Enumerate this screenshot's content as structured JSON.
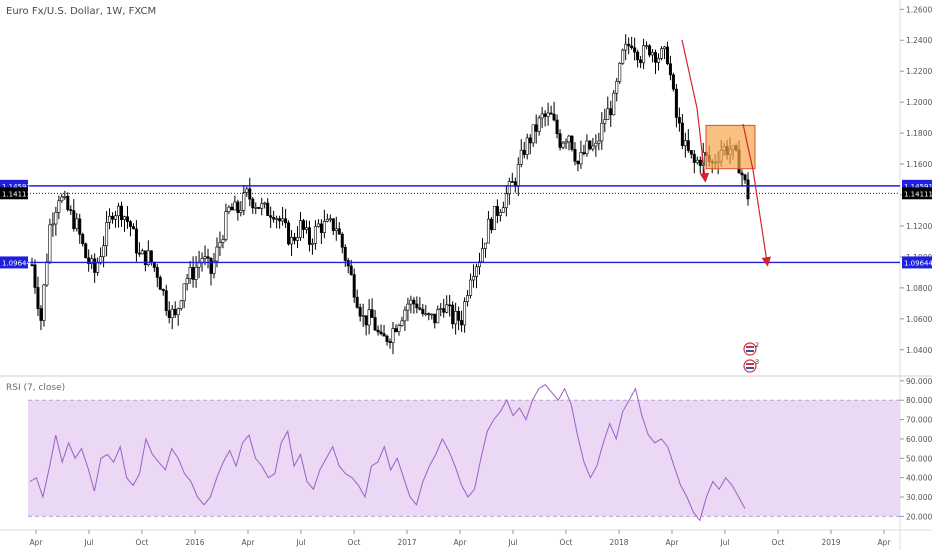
{
  "chart_data": [
    {
      "type": "candlestick",
      "title": "Euro Fx/U.S. Dollar, 1W, FXCM",
      "y_ticks": [
        "1.26000",
        "1.24000",
        "1.22000",
        "1.20000",
        "1.18000",
        "1.16000",
        "1.14000",
        "1.12000",
        "1.10000",
        "1.08000",
        "1.06000",
        "1.04000"
      ],
      "ylim": [
        1.025,
        1.266
      ],
      "x_ticks": [
        "Apr",
        "Jul",
        "Oct",
        "2016",
        "Apr",
        "Jul",
        "Oct",
        "2017",
        "Apr",
        "Jul",
        "Oct",
        "2018",
        "Apr",
        "Jul",
        "Oct",
        "2019",
        "Apr"
      ],
      "levels": [
        {
          "value": 1.14591,
          "label": "1.14591",
          "color": "#1f1fe0",
          "style": "solid"
        },
        {
          "value": 1.14111,
          "label": "1.14111",
          "color": "#000000",
          "style": "dotted"
        },
        {
          "value": 1.09644,
          "label": "1.09644",
          "color": "#1f1fe0",
          "style": "solid"
        }
      ],
      "close_path": [
        [
          0,
          1.095
        ],
        [
          3,
          1.06
        ],
        [
          6,
          1.12
        ],
        [
          9,
          1.14
        ],
        [
          12,
          1.13
        ],
        [
          15,
          1.12
        ],
        [
          18,
          1.1
        ],
        [
          21,
          1.09
        ],
        [
          24,
          1.11
        ],
        [
          27,
          1.13
        ],
        [
          30,
          1.13
        ],
        [
          33,
          1.12
        ],
        [
          36,
          1.1
        ],
        [
          39,
          1.1
        ],
        [
          42,
          1.09
        ],
        [
          45,
          1.07
        ],
        [
          48,
          1.06
        ],
        [
          51,
          1.085
        ],
        [
          54,
          1.09
        ],
        [
          57,
          1.1
        ],
        [
          60,
          1.09
        ],
        [
          63,
          1.11
        ],
        [
          66,
          1.13
        ],
        [
          69,
          1.13
        ],
        [
          72,
          1.14
        ],
        [
          75,
          1.135
        ],
        [
          78,
          1.13
        ],
        [
          81,
          1.13
        ],
        [
          84,
          1.12
        ],
        [
          87,
          1.11
        ],
        [
          90,
          1.12
        ],
        [
          93,
          1.11
        ],
        [
          96,
          1.12
        ],
        [
          99,
          1.12
        ],
        [
          102,
          1.12
        ],
        [
          105,
          1.1
        ],
        [
          108,
          1.08
        ],
        [
          111,
          1.06
        ],
        [
          114,
          1.06
        ],
        [
          117,
          1.045
        ],
        [
          120,
          1.05
        ],
        [
          123,
          1.06
        ],
        [
          126,
          1.07
        ],
        [
          129,
          1.07
        ],
        [
          132,
          1.06
        ],
        [
          135,
          1.06
        ],
        [
          138,
          1.07
        ],
        [
          141,
          1.06
        ],
        [
          144,
          1.06
        ],
        [
          147,
          1.09
        ],
        [
          150,
          1.1
        ],
        [
          153,
          1.12
        ],
        [
          156,
          1.13
        ],
        [
          159,
          1.14
        ],
        [
          162,
          1.15
        ],
        [
          165,
          1.17
        ],
        [
          168,
          1.18
        ],
        [
          171,
          1.19
        ],
        [
          174,
          1.19
        ],
        [
          177,
          1.175
        ],
        [
          180,
          1.18
        ],
        [
          183,
          1.16
        ],
        [
          186,
          1.17
        ],
        [
          189,
          1.17
        ],
        [
          192,
          1.19
        ],
        [
          195,
          1.2
        ],
        [
          198,
          1.23
        ],
        [
          201,
          1.24
        ],
        [
          204,
          1.23
        ],
        [
          207,
          1.235
        ],
        [
          210,
          1.23
        ],
        [
          213,
          1.23
        ],
        [
          216,
          1.19
        ],
        [
          219,
          1.17
        ],
        [
          222,
          1.16
        ],
        [
          225,
          1.165
        ],
        [
          228,
          1.16
        ],
        [
          231,
          1.17
        ],
        [
          234,
          1.17
        ],
        [
          237,
          1.16
        ],
        [
          240,
          1.14
        ]
      ],
      "annotation_box": {
        "y_top": 1.185,
        "y_bottom": 1.157
      },
      "event_badges": [
        "2",
        "3"
      ]
    },
    {
      "type": "line",
      "title": "RSI (7, close)",
      "y_ticks": [
        "90.0000",
        "80.0000",
        "70.0000",
        "60.0000",
        "50.0000",
        "40.0000",
        "30.0000",
        "20.0000"
      ],
      "ylim": [
        14,
        92
      ],
      "bands": [
        20,
        80
      ],
      "colors": {
        "line": "#9c5fc6",
        "band_fill": "#ead8f4",
        "band_line": "#b9a4c9"
      },
      "values": [
        38,
        40,
        30,
        45,
        62,
        48,
        58,
        50,
        55,
        45,
        33,
        50,
        52,
        48,
        56,
        40,
        36,
        42,
        60,
        52,
        48,
        44,
        55,
        50,
        42,
        38,
        30,
        26,
        30,
        40,
        48,
        54,
        46,
        58,
        62,
        50,
        46,
        40,
        42,
        58,
        64,
        46,
        52,
        38,
        34,
        44,
        50,
        56,
        46,
        42,
        40,
        36,
        30,
        46,
        48,
        56,
        44,
        50,
        40,
        30,
        26,
        38,
        46,
        52,
        60,
        54,
        46,
        36,
        30,
        34,
        50,
        64,
        70,
        74,
        80,
        72,
        76,
        70,
        80,
        86,
        88,
        84,
        80,
        86,
        78,
        62,
        48,
        40,
        46,
        58,
        68,
        60,
        74,
        80,
        86,
        72,
        62,
        58,
        60,
        56,
        46,
        36,
        30,
        22,
        18,
        30,
        38,
        34,
        40,
        36,
        30,
        24
      ]
    }
  ]
}
